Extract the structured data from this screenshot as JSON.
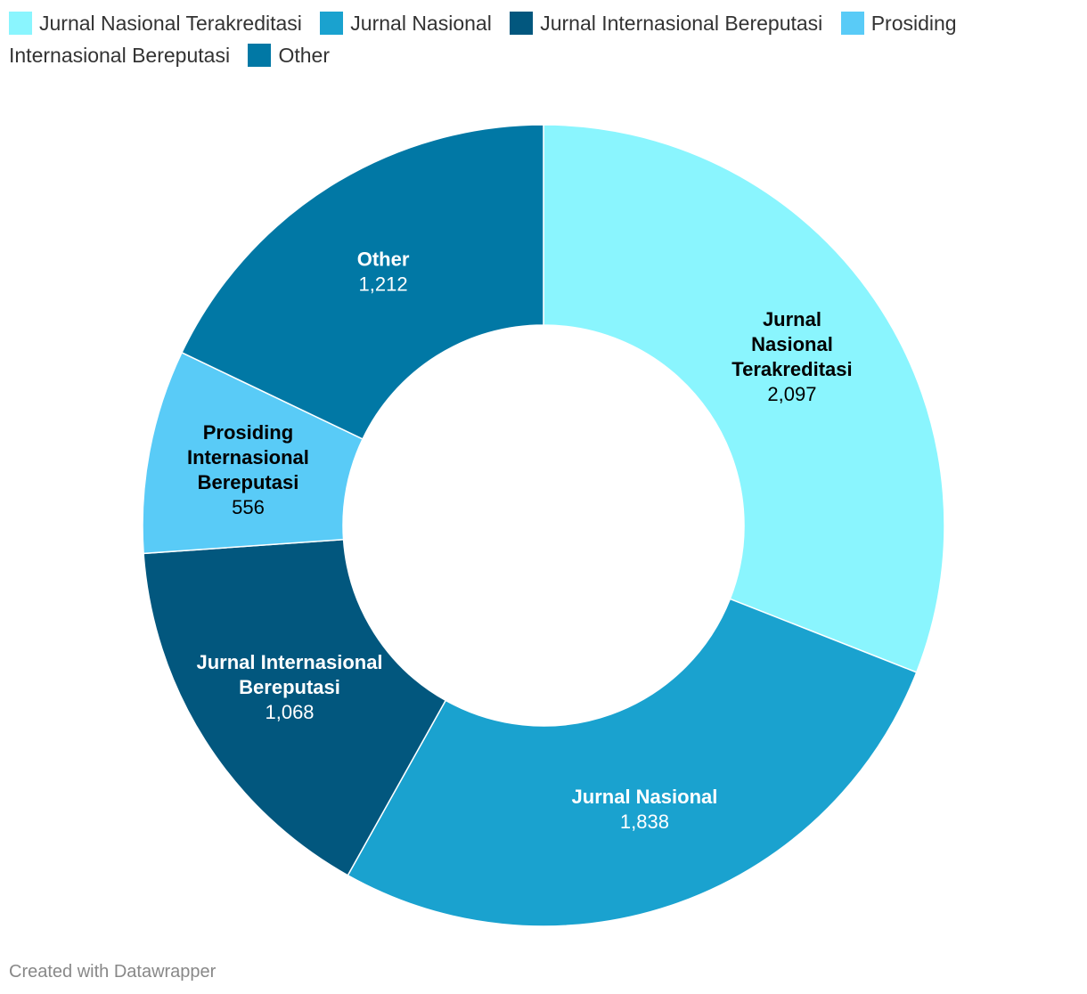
{
  "chart_data": {
    "type": "pie",
    "donut": true,
    "legend_position": "top",
    "slices": [
      {
        "label": "Jurnal Nasional Terakreditasi",
        "value": 2097,
        "value_label": "2,097",
        "color": "#8af5fe",
        "label_lines": [
          "Jurnal",
          "Nasional",
          "Terakreditasi"
        ],
        "label_color": "#000000"
      },
      {
        "label": "Jurnal Nasional",
        "value": 1838,
        "value_label": "1,838",
        "color": "#1aa2cf",
        "label_lines": [
          "Jurnal Nasional"
        ],
        "label_color": "#ffffff"
      },
      {
        "label": "Jurnal Internasional Bereputasi",
        "value": 1068,
        "value_label": "1,068",
        "color": "#02577e",
        "label_lines": [
          "Jurnal Internasional",
          "Bereputasi"
        ],
        "label_color": "#ffffff"
      },
      {
        "label": "Prosiding Internasional Bereputasi",
        "value": 556,
        "value_label": "556",
        "color": "#59cbf7",
        "label_lines": [
          "Prosiding",
          "Internasional",
          "Bereputasi"
        ],
        "label_color": "#000000"
      },
      {
        "label": "Other",
        "value": 1212,
        "value_label": "1,212",
        "color": "#0178a5",
        "label_lines": [
          "Other"
        ],
        "label_color": "#ffffff"
      }
    ]
  },
  "footer": "Created with Datawrapper"
}
